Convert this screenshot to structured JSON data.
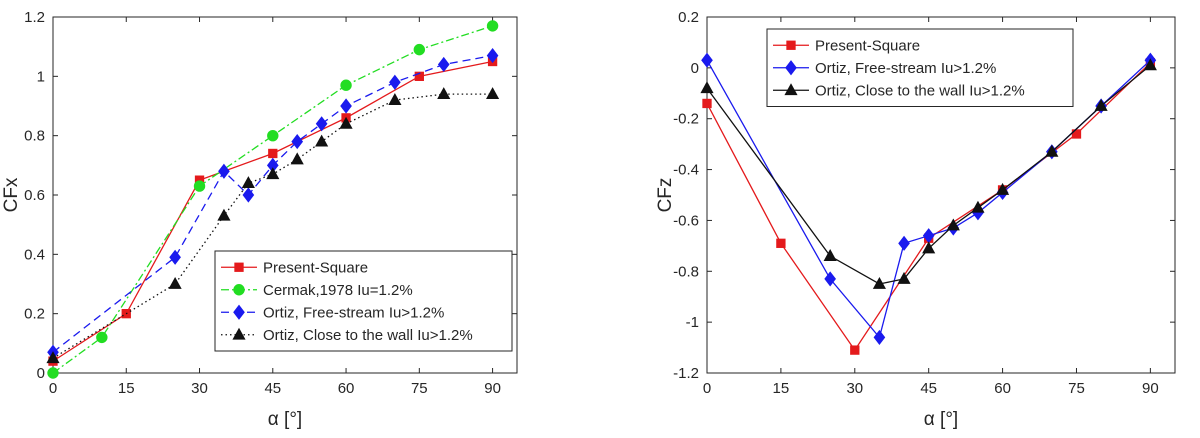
{
  "chart_data": [
    {
      "type": "line",
      "xlabel": "α [°]",
      "ylabel": "CFx",
      "xlim": [
        0,
        95
      ],
      "ylim": [
        0,
        1.2
      ],
      "xticks": [
        0,
        15,
        30,
        45,
        60,
        75,
        90
      ],
      "yticks": [
        0,
        0.2,
        0.4,
        0.6,
        0.8,
        1,
        1.2
      ],
      "xtick_labels": [
        "0",
        "15",
        "30",
        "45",
        "60",
        "75",
        "90"
      ],
      "ytick_labels": [
        "0",
        "0.2",
        "0.4",
        "0.6",
        "0.8",
        "1",
        "1.2"
      ],
      "legend_position": "lower-right",
      "grid": false,
      "series": [
        {
          "name": "Present-Square",
          "color": "#e41a1c",
          "marker": "square",
          "dash": "solid",
          "x": [
            0,
            15,
            30,
            45,
            60,
            75,
            90
          ],
          "y": [
            0.04,
            0.2,
            0.65,
            0.74,
            0.86,
            1.0,
            1.05
          ]
        },
        {
          "name": "Cermak,1978 Iu=1.2%",
          "color": "#22dd22",
          "marker": "circle",
          "dash": "dashdot",
          "x": [
            0,
            10,
            30,
            45,
            60,
            75,
            90
          ],
          "y": [
            0.0,
            0.12,
            0.63,
            0.8,
            0.97,
            1.09,
            1.17
          ]
        },
        {
          "name": "Ortiz, Free-stream Iu>1.2%",
          "color": "#1a1aee",
          "marker": "diamond",
          "dash": "dashed",
          "x": [
            0,
            25,
            35,
            40,
            45,
            50,
            55,
            60,
            70,
            80,
            90
          ],
          "y": [
            0.07,
            0.39,
            0.68,
            0.6,
            0.7,
            0.78,
            0.84,
            0.9,
            0.98,
            1.04,
            1.07
          ]
        },
        {
          "name": "Ortiz, Close to the wall Iu>1.2%",
          "color": "#111111",
          "marker": "triangle",
          "dash": "dotted",
          "x": [
            0,
            25,
            35,
            40,
            45,
            50,
            55,
            60,
            70,
            80,
            90
          ],
          "y": [
            0.05,
            0.3,
            0.53,
            0.64,
            0.67,
            0.72,
            0.78,
            0.84,
            0.92,
            0.94,
            0.94
          ]
        }
      ]
    },
    {
      "type": "line",
      "xlabel": "α [°]",
      "ylabel": "CFz",
      "xlim": [
        0,
        95
      ],
      "ylim": [
        -1.2,
        0.2
      ],
      "xticks": [
        0,
        15,
        30,
        45,
        60,
        75,
        90
      ],
      "yticks": [
        -1.2,
        -1,
        -0.8,
        -0.6,
        -0.4,
        -0.2,
        0,
        0.2
      ],
      "xtick_labels": [
        "0",
        "15",
        "30",
        "45",
        "60",
        "75",
        "90"
      ],
      "ytick_labels": [
        "-1.2",
        "-1",
        "-0.8",
        "-0.6",
        "-0.4",
        "-0.2",
        "0",
        "0.2"
      ],
      "legend_position": "top-left",
      "grid": false,
      "series": [
        {
          "name": "Present-Square",
          "color": "#e41a1c",
          "marker": "square",
          "dash": "solid",
          "x": [
            0,
            15,
            30,
            45,
            60,
            75,
            90
          ],
          "y": [
            -0.14,
            -0.69,
            -1.11,
            -0.67,
            -0.48,
            -0.26,
            0.02
          ]
        },
        {
          "name": "Ortiz, Free-stream Iu>1.2%",
          "color": "#1a1aee",
          "marker": "diamond",
          "dash": "solid",
          "x": [
            0,
            25,
            35,
            40,
            45,
            50,
            55,
            60,
            70,
            80,
            90
          ],
          "y": [
            0.03,
            -0.83,
            -1.06,
            -0.69,
            -0.66,
            -0.63,
            -0.57,
            -0.49,
            -0.33,
            -0.15,
            0.03
          ]
        },
        {
          "name": "Ortiz, Close to the wall Iu>1.2%",
          "color": "#111111",
          "marker": "triangle",
          "dash": "solid",
          "x": [
            0,
            25,
            35,
            40,
            45,
            50,
            55,
            60,
            70,
            80,
            90
          ],
          "y": [
            -0.08,
            -0.74,
            -0.85,
            -0.83,
            -0.71,
            -0.62,
            -0.55,
            -0.48,
            -0.33,
            -0.15,
            0.01
          ]
        }
      ]
    }
  ]
}
